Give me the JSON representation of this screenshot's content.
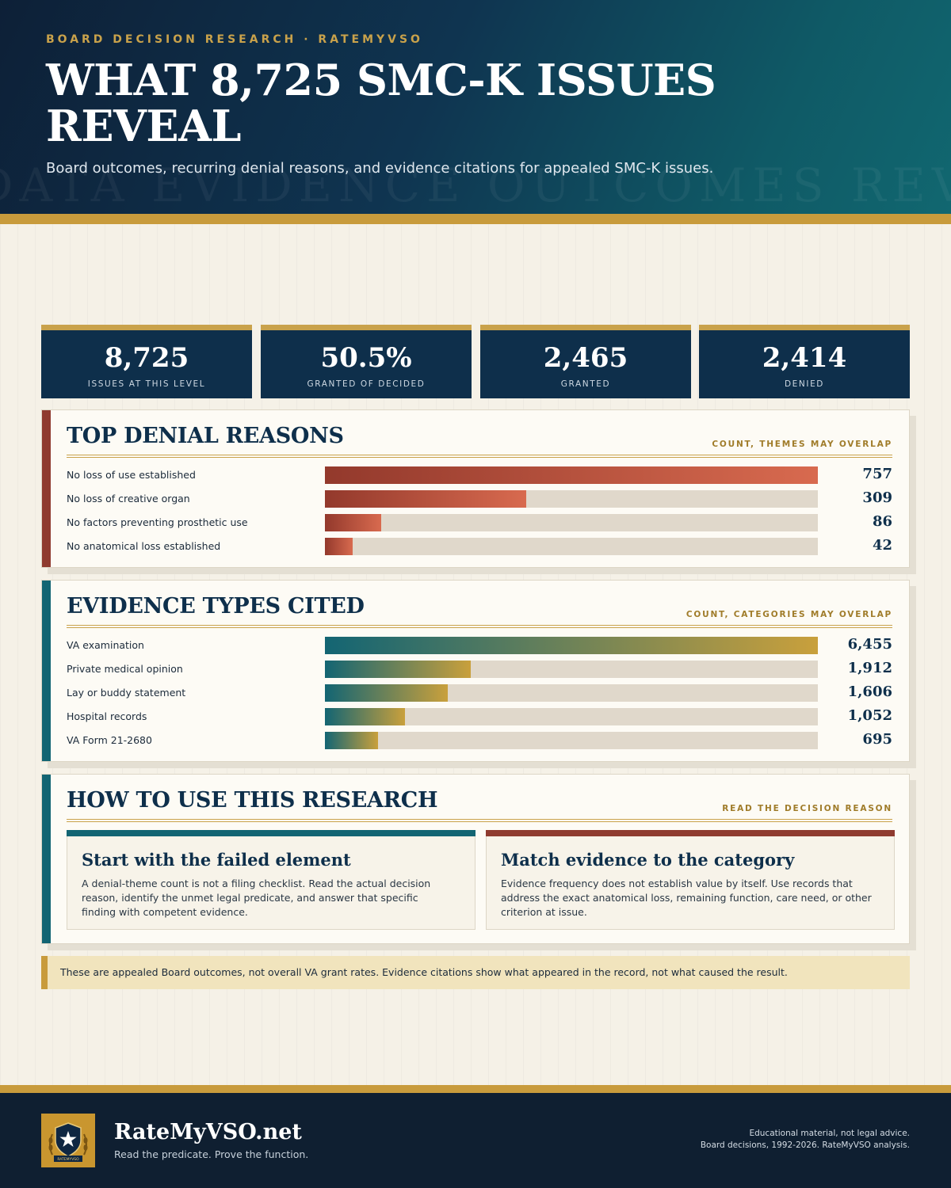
{
  "header": {
    "eyebrow": "BOARD DECISION RESEARCH · RATEMYVSO",
    "title": "WHAT 8,725 SMC-K ISSUES REVEAL",
    "subtitle": "Board outcomes, recurring denial reasons, and evidence citations for appealed SMC-K issues.",
    "watermark": "DATA EVIDENCE OUTCOMES REVIEW"
  },
  "stats": [
    {
      "value": "8,725",
      "label": "ISSUES AT THIS LEVEL"
    },
    {
      "value": "50.5%",
      "label": "GRANTED OF DECIDED"
    },
    {
      "value": "2,465",
      "label": "GRANTED"
    },
    {
      "value": "2,414",
      "label": "DENIED"
    }
  ],
  "denial": {
    "title": "TOP DENIAL REASONS",
    "note": "COUNT, THEMES MAY OVERLAP"
  },
  "evidence": {
    "title": "EVIDENCE TYPES CITED",
    "note": "COUNT, CATEGORIES MAY OVERLAP"
  },
  "howto": {
    "title": "HOW TO USE THIS RESEARCH",
    "note": "READ THE DECISION REASON",
    "cards": [
      {
        "title": "Start with the failed element",
        "body": "A denial-theme count is not a filing checklist. Read the actual decision reason, identify the unmet legal predicate, and answer that specific finding with competent evidence."
      },
      {
        "title": "Match evidence to the category",
        "body": "Evidence frequency does not establish value by itself. Use records that address the exact anatomical loss, remaining function, care need, or other criterion at issue."
      }
    ]
  },
  "disclaimer": "These are appealed Board outcomes, not overall VA grant rates. Evidence citations show what appeared in the record, not what caused the result.",
  "footer": {
    "brand": "RateMyVSO.net",
    "tagline": "Read the predicate. Prove the function.",
    "note1": "Educational material, not legal advice.",
    "note2": "Board decisions, 1992-2026. RateMyVSO analysis.",
    "logo_banner": "RATEMYVSO"
  },
  "colors": {
    "navy": "#0e2f4b",
    "gold": "#c89b3c",
    "denial_accent": "#8f3b2f",
    "evidence_accent": "#136573"
  },
  "chart_data": [
    {
      "type": "bar",
      "orientation": "horizontal",
      "title": "TOP DENIAL REASONS",
      "categories": [
        "No loss of use established",
        "No loss of creative organ",
        "No factors preventing prosthetic use",
        "No anatomical loss established"
      ],
      "values": [
        757,
        309,
        86,
        42
      ],
      "labels": [
        "757",
        "309",
        "86",
        "42"
      ]
    },
    {
      "type": "bar",
      "orientation": "horizontal",
      "title": "EVIDENCE TYPES CITED",
      "categories": [
        "VA examination",
        "Private medical opinion",
        "Lay or buddy statement",
        "Hospital records",
        "VA Form 21-2680"
      ],
      "values": [
        6455,
        1912,
        1606,
        1052,
        695
      ],
      "labels": [
        "6,455",
        "1,912",
        "1,606",
        "1,052",
        "695"
      ]
    }
  ]
}
